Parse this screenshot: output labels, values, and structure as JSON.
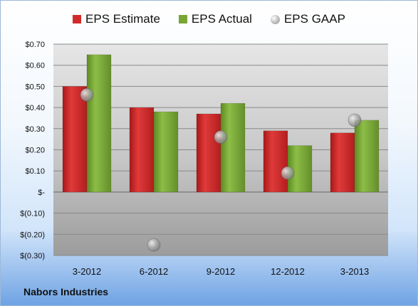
{
  "chart_data": {
    "type": "bar",
    "categories": [
      "3-2012",
      "6-2012",
      "9-2012",
      "12-2012",
      "3-2013"
    ],
    "series": [
      {
        "name": "EPS Estimate",
        "kind": "bar",
        "color": "#d22a2a",
        "values": [
          0.5,
          0.4,
          0.37,
          0.29,
          0.28
        ]
      },
      {
        "name": "EPS Actual",
        "kind": "bar",
        "color": "#78a634",
        "values": [
          0.65,
          0.38,
          0.42,
          0.22,
          0.34
        ]
      },
      {
        "name": "EPS GAAP",
        "kind": "marker",
        "color": "#bdbdbd",
        "values": [
          0.46,
          -0.25,
          0.26,
          0.09,
          0.34
        ]
      }
    ],
    "ylim": [
      -0.3,
      0.7
    ],
    "yticks": [
      0.7,
      0.6,
      0.5,
      0.4,
      0.3,
      0.2,
      0.1,
      0.0,
      -0.1,
      -0.2,
      -0.3
    ],
    "ytick_labels": [
      "$0.70",
      "$0.60",
      "$0.50",
      "$0.40",
      "$0.30",
      "$0.20",
      "$0.10",
      "$-",
      "$(0.10)",
      "$(0.20)",
      "$(0.30)"
    ],
    "legend_position": "top",
    "grid": true,
    "company": "Nabors Industries"
  }
}
